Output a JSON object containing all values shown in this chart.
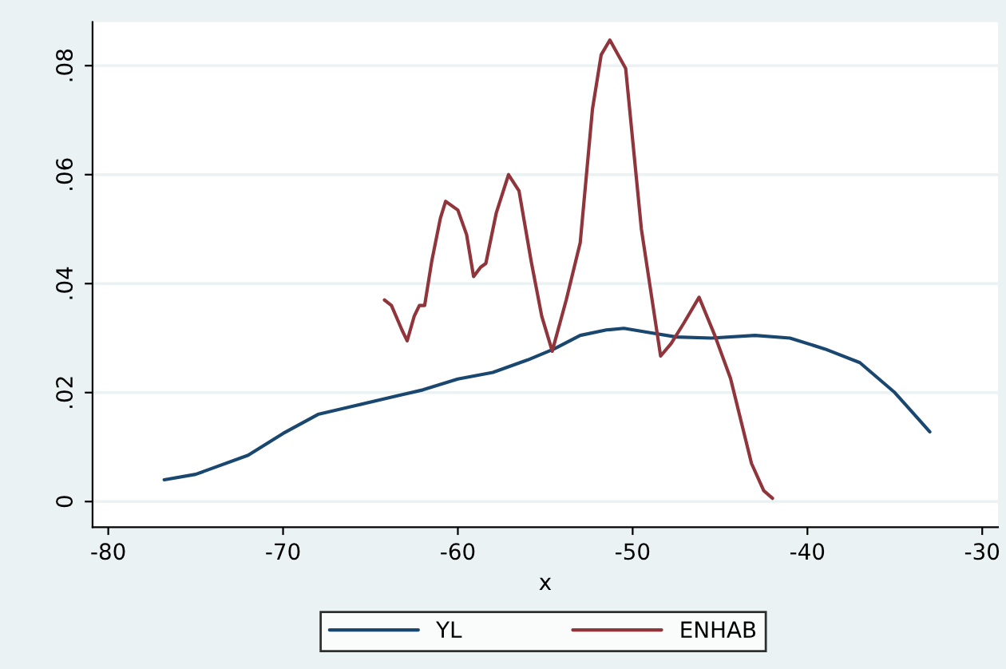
{
  "chart_data": {
    "type": "line",
    "xlabel": "x",
    "xlim": [
      -80.9,
      -29.1
    ],
    "ylim": [
      -0.0047,
      0.088
    ],
    "xticks": [
      -80,
      -70,
      -60,
      -50,
      -40,
      -30
    ],
    "yticks": [
      0,
      {
        "value": 0.02,
        "label": ".02"
      },
      {
        "value": 0.04,
        "label": ".04"
      },
      {
        "value": 0.06,
        "label": ".06"
      },
      {
        "value": 0.08,
        "label": ".08"
      }
    ],
    "grid": "y",
    "legend": "bottom",
    "series": [
      {
        "name": "YL",
        "color": "#1a476f",
        "x": [
          -76.8,
          -75,
          -72,
          -70,
          -68,
          -66,
          -64,
          -62,
          -60,
          -58,
          -56,
          -54.5,
          -53,
          -51.5,
          -50.5,
          -49,
          -47.5,
          -45.5,
          -43,
          -41,
          -39,
          -37,
          -35,
          -33
        ],
        "values": [
          0.004,
          0.005,
          0.0085,
          0.0125,
          0.016,
          0.0175,
          0.019,
          0.0205,
          0.0225,
          0.0237,
          0.026,
          0.028,
          0.0305,
          0.0315,
          0.0318,
          0.031,
          0.0302,
          0.03,
          0.0305,
          0.03,
          0.028,
          0.0255,
          0.02,
          0.0128
        ]
      },
      {
        "name": "ENHAB",
        "color": "#90353b",
        "x": [
          -64.2,
          -63.8,
          -63.4,
          -63.2,
          -62.9,
          -62.5,
          -62.2,
          -61.9,
          -61.5,
          -61,
          -60.7,
          -60,
          -59.5,
          -59.1,
          -58.7,
          -58.4,
          -57.8,
          -57.1,
          -56.5,
          -55.8,
          -55.2,
          -54.6,
          -53.8,
          -53,
          -52.3,
          -51.8,
          -51.3,
          -50.4,
          -49.5,
          -48.4,
          -47.8,
          -47.1,
          -46.2,
          -45.3,
          -44.4,
          -43.2,
          -42.5,
          -42
        ],
        "values": [
          0.037,
          0.036,
          0.033,
          0.0315,
          0.0295,
          0.034,
          0.036,
          0.036,
          0.044,
          0.052,
          0.0551,
          0.0535,
          0.049,
          0.0413,
          0.043,
          0.0437,
          0.053,
          0.06,
          0.057,
          0.044,
          0.034,
          0.0276,
          0.037,
          0.0475,
          0.072,
          0.082,
          0.0847,
          0.0795,
          0.05,
          0.0267,
          0.029,
          0.0326,
          0.0375,
          0.0305,
          0.0226,
          0.007,
          0.002,
          0.0006
        ]
      }
    ]
  }
}
